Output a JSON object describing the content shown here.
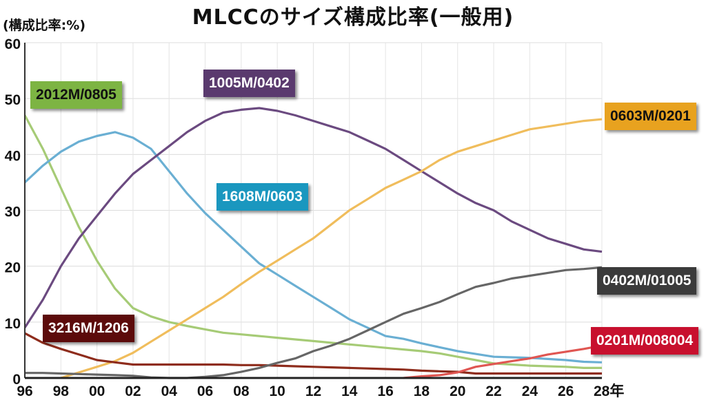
{
  "chart_data": {
    "type": "line",
    "title": "MLCCのサイズ構成比率(一般用)",
    "ylabel": "(構成比率:%)",
    "xlabel": "年",
    "ylim": [
      0,
      60
    ],
    "yticks": [
      "0",
      "10",
      "20",
      "30",
      "40",
      "50",
      "60"
    ],
    "xticks": [
      "96",
      "98",
      "00",
      "02",
      "04",
      "06",
      "08",
      "10",
      "12",
      "14",
      "16",
      "18",
      "20",
      "22",
      "24",
      "26",
      "28年"
    ],
    "grid": true,
    "x": [
      1996,
      1997,
      1998,
      1999,
      2000,
      2001,
      2002,
      2003,
      2004,
      2005,
      2006,
      2007,
      2008,
      2009,
      2010,
      2011,
      2012,
      2013,
      2014,
      2015,
      2016,
      2017,
      2018,
      2019,
      2020,
      2021,
      2022,
      2023,
      2024,
      2025,
      2026,
      2027,
      2028
    ],
    "series": [
      {
        "name": "2012M/0805",
        "color": "#a6cb76",
        "label_bg": "#7db443",
        "label_fg": "#111111",
        "values": [
          47,
          41,
          34,
          27,
          21,
          16,
          12.5,
          11,
          10,
          9.3,
          8.7,
          8.1,
          7.8,
          7.5,
          7.2,
          6.9,
          6.6,
          6.3,
          6,
          5.7,
          5.4,
          5.1,
          4.8,
          4.4,
          3.8,
          3.2,
          2.6,
          2.4,
          2.2,
          2.1,
          2,
          1.8,
          1.8
        ]
      },
      {
        "name": "1608M/0603",
        "color": "#6aafd3",
        "label_bg": "#1a97bf",
        "label_fg": "#ffffff",
        "values": [
          35,
          38,
          40.5,
          42.3,
          43.3,
          44,
          43,
          41,
          37,
          33,
          29.5,
          26.5,
          23.5,
          20.5,
          18.5,
          16.5,
          14.5,
          12.5,
          10.5,
          9,
          7.5,
          7,
          6.2,
          5.5,
          4.8,
          4.3,
          3.8,
          3.7,
          3.6,
          3.4,
          3.2,
          2.9,
          2.8
        ]
      },
      {
        "name": "1005M/0402",
        "color": "#6b4a80",
        "label_bg": "#5a3a6e",
        "label_fg": "#ffffff",
        "values": [
          9,
          14,
          20,
          25,
          29,
          33,
          36.5,
          39,
          41.5,
          44,
          46,
          47.5,
          48,
          48.3,
          47.8,
          47,
          46,
          45,
          44,
          42.5,
          41,
          39,
          37,
          35,
          33,
          31.3,
          30,
          28,
          26.5,
          25,
          24,
          23,
          22.6
        ]
      },
      {
        "name": "0603M/0201",
        "color": "#f0bd5c",
        "label_bg": "#e8a21f",
        "label_fg": "#111111",
        "values": [
          null,
          null,
          0,
          1,
          2,
          3,
          4.5,
          6.5,
          8.5,
          10.5,
          12.5,
          14.5,
          16.8,
          19,
          21,
          23,
          25,
          27.5,
          30,
          32,
          34,
          35.5,
          37,
          39,
          40.5,
          41.5,
          42.5,
          43.5,
          44.5,
          45,
          45.5,
          46,
          46.3
        ]
      },
      {
        "name": "3216M/1206",
        "color": "#8e2c1c",
        "label_bg": "#5c0b0b",
        "label_fg": "#ffffff",
        "values": [
          8,
          6.3,
          5.2,
          4.2,
          3.2,
          2.8,
          2.4,
          2.4,
          2.4,
          2.4,
          2.4,
          2.4,
          2.3,
          2.3,
          2.2,
          2.1,
          2,
          1.9,
          1.8,
          1.7,
          1.6,
          1.5,
          1.3,
          1.2,
          1.1,
          0.8,
          0.8,
          0.8,
          0.8,
          0.8,
          0.8,
          0.8,
          0.8
        ]
      },
      {
        "name": "0402M/01005",
        "color": "#666666",
        "label_bg": "#3b3b3b",
        "label_fg": "#ffffff",
        "values": [
          0.9,
          0.9,
          0.8,
          0.7,
          0.6,
          0.5,
          0.4,
          0.1,
          0,
          0,
          0.2,
          0.5,
          1.1,
          1.8,
          2.7,
          3.5,
          4.8,
          5.8,
          7,
          8.5,
          10,
          11.5,
          12.5,
          13.6,
          15,
          16.3,
          17,
          17.8,
          18.3,
          18.8,
          19.3,
          19.5,
          19.8
        ]
      },
      {
        "name": "0201M/008004",
        "color": "#e05652",
        "label_bg": "#c8102e",
        "label_fg": "#ffffff",
        "values": [
          null,
          null,
          null,
          null,
          null,
          null,
          null,
          null,
          null,
          null,
          null,
          null,
          null,
          null,
          null,
          null,
          null,
          null,
          null,
          null,
          null,
          0,
          0.3,
          0.5,
          1,
          2,
          2.5,
          3,
          3.5,
          4.2,
          4.7,
          5.2,
          5.8
        ]
      }
    ]
  }
}
